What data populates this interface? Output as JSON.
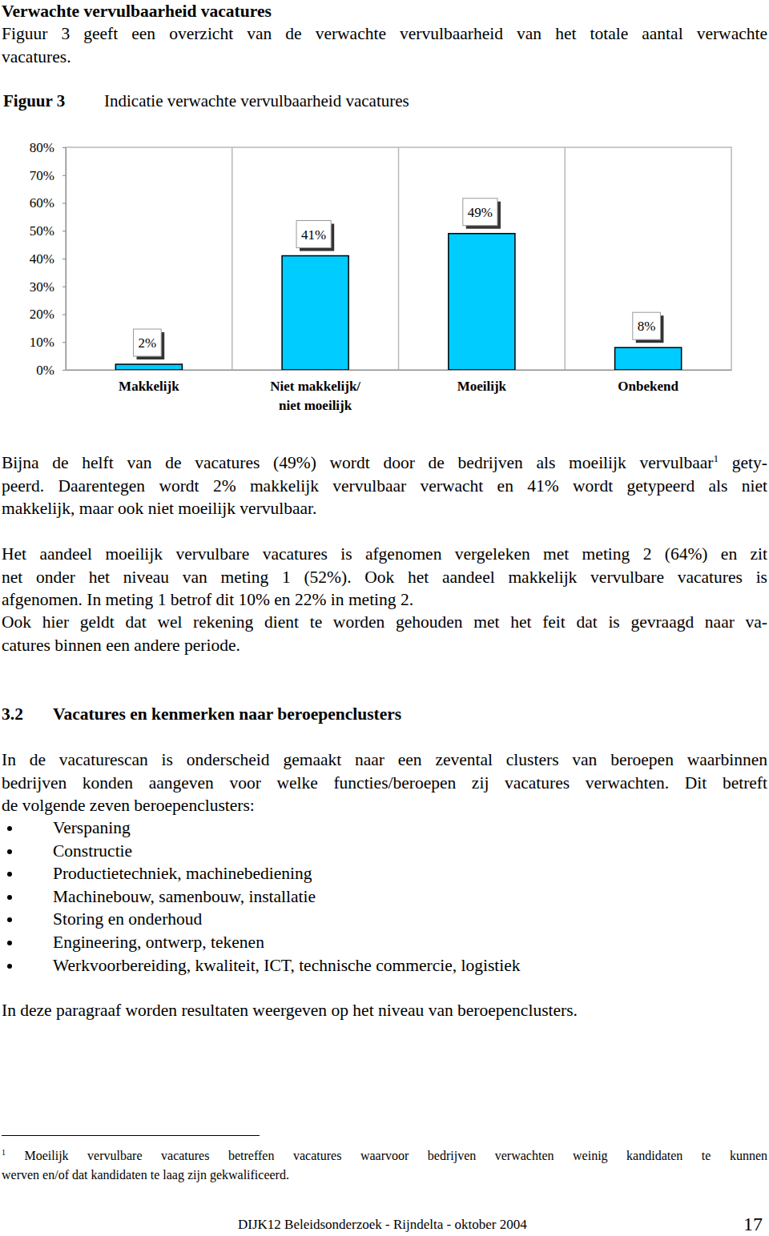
{
  "heading": "Verwachte vervulbaarheid vacatures",
  "intro": [
    [
      "Figuur 3 geeft een overzicht van de verwachte vervulbaarheid van het totale aantal verwachte",
      "vacatures."
    ]
  ],
  "figure_label": "Figuur 3",
  "chart_data": {
    "type": "bar",
    "title": "Indicatie verwachte vervulbaarheid vacatures",
    "categories": [
      "Makkelijk",
      "Niet makkelijk/\nniet moeilijk",
      "Moeilijk",
      "Onbekend"
    ],
    "values": [
      2,
      41,
      49,
      8
    ],
    "value_labels": [
      "2%",
      "41%",
      "49%",
      "8%"
    ],
    "data_labels": true,
    "color": "#00ccff",
    "ylim": [
      0,
      80
    ],
    "yticks": [
      {
        "value": 0,
        "label": "0%"
      },
      {
        "value": 10,
        "label": "10%"
      },
      {
        "value": 20,
        "label": "20%"
      },
      {
        "value": 30,
        "label": "30%"
      },
      {
        "value": 40,
        "label": "40%"
      },
      {
        "value": 50,
        "label": "50%"
      },
      {
        "value": 60,
        "label": "60%"
      },
      {
        "value": 70,
        "label": "70%"
      },
      {
        "value": 80,
        "label": "80%"
      }
    ]
  },
  "paragraphs_after_chart": [
    [
      [
        "Bijna de helft van de vacatures (49%) wordt door de bedrijven als moeilijk vervulbaar",
        {
          "sup": "1"
        },
        " gety-"
      ],
      "peerd. Daarentegen wordt 2% makkelijk vervulbaar verwacht en 41% wordt getypeerd als niet",
      "makkelijk, maar ook niet moeilijk vervulbaar."
    ],
    [
      "Het aandeel moeilijk vervulbare vacatures is afgenomen vergeleken met meting 2 (64%) en zit",
      "net onder het niveau van meting 1 (52%). Ook het aandeel makkelijk vervulbare vacatures is",
      "afgenomen. In meting 1 betrof dit 10% en 22% in meting 2."
    ],
    [
      "Ook hier geldt dat wel rekening dient te worden gehouden met het feit dat is gevraagd naar va-",
      "catures binnen een andere periode."
    ]
  ],
  "section": {
    "number": "3.2",
    "title": "Vacatures en kenmerken naar beroepenclusters"
  },
  "section_intro": [
    "In de vacaturescan is onderscheid gemaakt naar een zevental clusters van beroepen waarbinnen",
    "bedrijven konden aangeven voor welke functies/beroepen zij vacatures verwachten. Dit betreft",
    "de volgende zeven beroepenclusters:"
  ],
  "list": [
    "Verspaning",
    "Constructie",
    "Productietechniek, machinebediening",
    "Machinebouw, samenbouw, installatie",
    "Storing en onderhoud",
    "Engineering, ontwerp, tekenen",
    "Werkvoorbereiding, kwaliteit, ICT, technische commercie, logistiek"
  ],
  "section_outro": "In deze paragraaf worden resultaten weergeven op het niveau van beroepenclusters.",
  "footnote": [
    [
      {
        "sup": "1"
      },
      " Moeilijk vervulbare vacatures betreffen vacatures waarvoor bedrijven verwachten weinig kandidaten te kunnen"
    ],
    "werven en/of dat kandidaten te laag zijn gekwalificeerd."
  ],
  "footer": {
    "text": "DIJK12 Beleidsonderzoek - Rijndelta - oktober 2004",
    "page": 17
  }
}
